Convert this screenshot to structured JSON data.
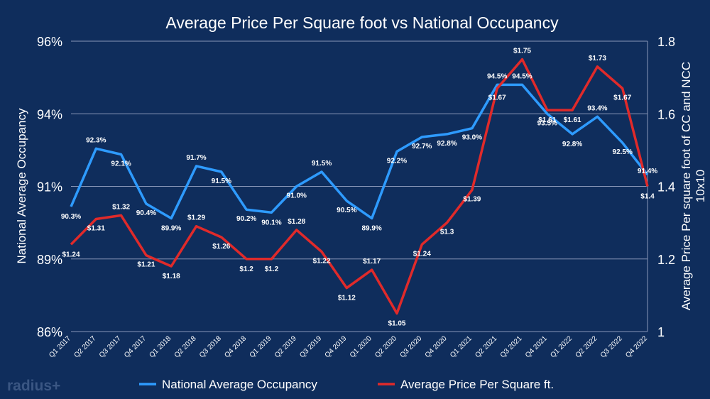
{
  "chart_data": {
    "type": "line",
    "title": "Average Price Per Square foot vs National Occupancy",
    "categories": [
      "Q1 2017",
      "Q2 2017",
      "Q3 2017",
      "Q4 2017",
      "Q1 2018",
      "Q2 2018",
      "Q3 2018",
      "Q4 2018",
      "Q1 2019",
      "Q2 2019",
      "Q3 2019",
      "Q4 2019",
      "Q1 2020",
      "Q2 2020",
      "Q3 2020",
      "Q4 2020",
      "Q1 2021",
      "Q2 2021",
      "Q3 2021",
      "Q4 2021",
      "Q1 2022",
      "Q2 2022",
      "Q3 2022",
      "Q4 2022"
    ],
    "ylabel_left": "National Average Occupancy",
    "ylabel_right_line1": "Average Price Per square foot of CC and NCC",
    "ylabel_right_line2": "10x10",
    "left_axis": {
      "min": 86,
      "max": 96,
      "ticks": [
        86,
        88.5,
        91,
        93.5,
        96
      ],
      "tick_labels": [
        "86%",
        "89%",
        "91%",
        "94%",
        "96%"
      ]
    },
    "right_axis": {
      "min": 1,
      "max": 1.8,
      "ticks": [
        1,
        1.2,
        1.4,
        1.6,
        1.8
      ],
      "tick_labels": [
        "1",
        "1.2",
        "1.4",
        "1.6",
        "1.8"
      ]
    },
    "series": [
      {
        "name": "National Average Occupancy",
        "axis": "left",
        "color": "#2e9bff",
        "values": [
          90.3,
          92.3,
          92.1,
          90.4,
          89.9,
          91.7,
          91.5,
          90.2,
          90.1,
          91.0,
          91.5,
          90.5,
          89.9,
          92.2,
          92.7,
          92.8,
          93.0,
          94.5,
          94.5,
          93.5,
          92.8,
          93.4,
          92.5,
          91.4
        ],
        "labels": [
          "90.3%",
          "92.3%",
          "92.1%",
          "90.4%",
          "89.9%",
          "91.7%",
          "91.5%",
          "90.2%",
          "90.1%",
          "91.0%",
          "91.5%",
          "90.5%",
          "89.9%",
          "92.2%",
          "92.7%",
          "92.8%",
          "93.0%",
          "94.5%",
          "94.5%",
          "93.5%",
          "92.8%",
          "93.4%",
          "92.5%",
          "91.4%"
        ]
      },
      {
        "name": "Average Price Per Square ft.",
        "axis": "right",
        "color": "#e02a2a",
        "values": [
          1.24,
          1.31,
          1.32,
          1.21,
          1.18,
          1.29,
          1.26,
          1.2,
          1.2,
          1.28,
          1.22,
          1.12,
          1.17,
          1.05,
          1.24,
          1.3,
          1.39,
          1.67,
          1.75,
          1.61,
          1.61,
          1.73,
          1.67,
          1.4
        ],
        "labels": [
          "$1.24",
          "$1.31",
          "$1.32",
          "$1.21",
          "$1.18",
          "$1.29",
          "$1.26",
          "$1.2",
          "$1.2",
          "$1.28",
          "$1.22",
          "$1.12",
          "$1.17",
          "$1.05",
          "$1.24",
          "$1.3",
          "$1.39",
          "$1.67",
          "$1.75",
          "$1.61",
          "$1.61",
          "$1.73",
          "$1.67",
          "$1.4"
        ]
      }
    ],
    "legend_position": "bottom",
    "grid": true
  },
  "watermark": "radius+"
}
